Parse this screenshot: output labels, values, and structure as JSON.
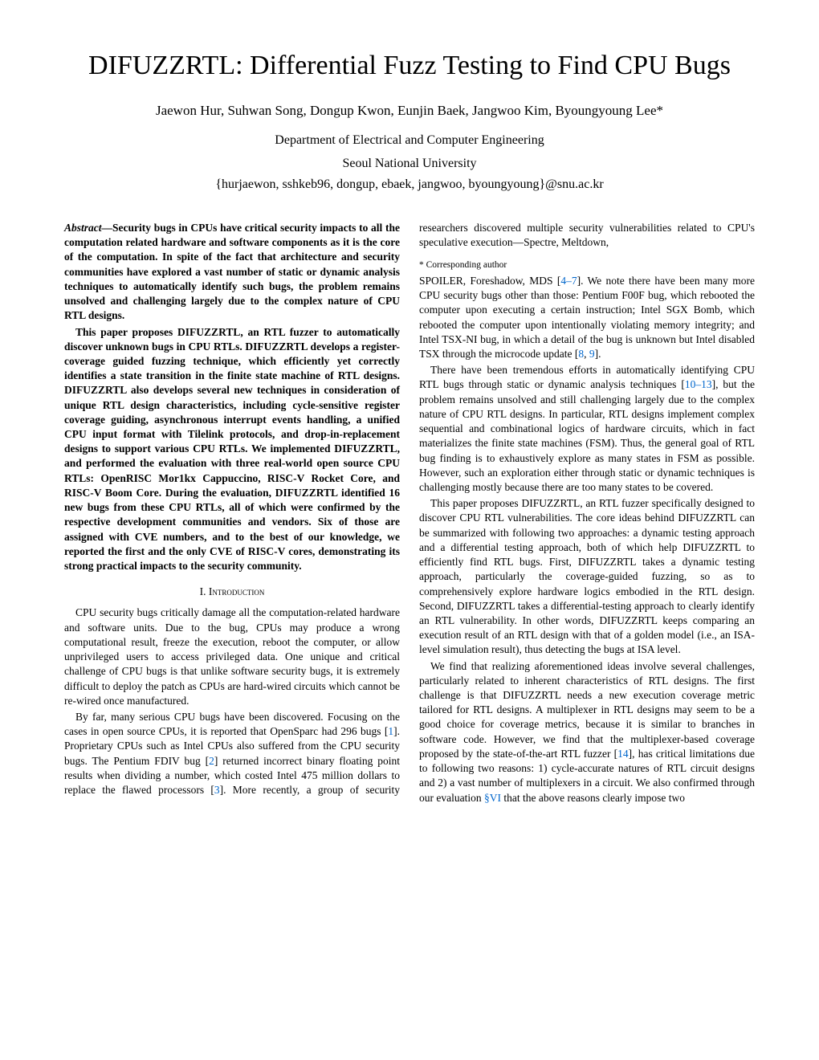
{
  "title_part1": "D",
  "title_part2": "IFUZZ",
  "title_part3": "RTL: Differential Fuzz Testing to Find CPU Bugs",
  "authors": "Jaewon Hur, Suhwan Song, Dongup Kwon, Eunjin Baek, Jangwoo Kim, Byoungyoung Lee*",
  "affiliation_dept": "Department of Electrical and Computer Engineering",
  "affiliation_univ": "Seoul National University",
  "emails": "{hurjaewon, sshkeb96, dongup, ebaek, jangwoo, byoungyoung}@snu.ac.kr",
  "abstract_label": "Abstract—",
  "abstract_p1": "Security bugs in CPUs have critical security impacts to all the computation related hardware and software components as it is the core of the computation. In spite of the fact that architecture and security communities have explored a vast number of static or dynamic analysis techniques to automatically identify such bugs, the problem remains unsolved and challenging largely due to the complex nature of CPU RTL designs.",
  "abstract_p2a": "This paper proposes D",
  "abstract_p2b": "RTL, an RTL fuzzer to automatically discover unknown bugs in CPU RTLs. D",
  "abstract_p2c": "RTL develops a register-coverage guided fuzzing technique, which efficiently yet correctly identifies a state transition in the finite state machine of RTL designs. D",
  "abstract_p2d": "RTL also develops several new techniques in consideration of unique RTL design characteristics, including cycle-sensitive register coverage guiding, asynchronous interrupt events handling, a unified CPU input format with Tilelink protocols, and drop-in-replacement designs to support various CPU RTLs. We implemented D",
  "abstract_p2e": "RTL, and performed the evaluation with three real-world open source CPU RTLs: OpenRISC Mor1kx Cappuccino, RISC-V Rocket Core, and RISC-V Boom Core. During the evaluation, D",
  "abstract_p2f": "RTL identified 16 new bugs from these CPU RTLs, all of which were confirmed by the respective development communities and vendors. Six of those are assigned with CVE numbers, and to the best of our knowledge, we reported the first and the only CVE of RISC-V cores, demonstrating its strong practical impacts to the security community.",
  "section1_heading": "I. Introduction",
  "intro_p1": "CPU security bugs critically damage all the computation-related hardware and software units. Due to the bug, CPUs may produce a wrong computational result, freeze the execution, reboot the computer, or allow unprivileged users to access privileged data. One unique and critical challenge of CPU bugs is that unlike software security bugs, it is extremely difficult to deploy the patch as CPUs are hard-wired circuits which cannot be re-wired once manufactured.",
  "intro_p2a": "By far, many serious CPU bugs have been discovered. Focusing on the cases in open source CPUs, it is reported that OpenSparc had 296 bugs [",
  "intro_p2b": "]. Proprietary CPUs such as Intel CPUs also suffered from the CPU security bugs. The Pentium FDIV bug [",
  "intro_p2c": "] returned incorrect binary floating point results when dividing a number, which costed Intel 475 million dollars to replace the flawed processors [",
  "intro_p2d": "]. More recently, a group of security researchers discovered multiple security vulnerabilities related to CPU's speculative execution—Spectre, Meltdown, ",
  "ref1": "1",
  "ref2": "2",
  "ref3": "3",
  "footnote": "* Corresponding author",
  "col2_p1a": "SPOILER, Foreshadow, MDS [",
  "col2_p1b": "]. We note there have been many more CPU security bugs other than those: Pentium F00F bug, which rebooted the computer upon executing a certain instruction; Intel SGX Bomb, which rebooted the computer upon intentionally violating memory integrity; and Intel TSX-NI bug, in which a detail of the bug is unknown but Intel disabled TSX through the microcode update [",
  "col2_p1c": "].",
  "ref4_7": "4–7",
  "ref8": "8",
  "ref9": "9",
  "col2_p2a": "There have been tremendous efforts in automatically identifying CPU RTL bugs through static or dynamic analysis techniques [",
  "col2_p2b": "], but the problem remains unsolved and still challenging largely due to the complex nature of CPU RTL designs. In particular, RTL designs implement complex sequential and combinational logics of hardware circuits, which in fact materializes the finite state machines (FSM). Thus, the general goal of RTL bug finding is to exhaustively explore as many states in FSM as possible. However, such an exploration either through static or dynamic techniques is challenging mostly because there are too many states to be covered.",
  "ref10_13": "10–13",
  "col2_p3a": "This paper proposes D",
  "col2_p3b": "RTL, an RTL fuzzer specifically designed to discover CPU RTL vulnerabilities. The core ideas behind D",
  "col2_p3c": "RTL can be summarized with following two approaches: a dynamic testing approach and a differential testing approach, both of which help D",
  "col2_p3d": "RTL to efficiently find RTL bugs. First, D",
  "col2_p3e": "RTL takes a dynamic testing approach, particularly the coverage-guided fuzzing, so as to comprehensively explore hardware logics embodied in the RTL design. Second, D",
  "col2_p3f": "RTL takes a differential-testing approach to clearly identify an RTL vulnerability. In other words, D",
  "col2_p3g": "RTL keeps comparing an execution result of an RTL design with that of a golden model (i.e., an ISA-level simulation result), thus detecting the bugs at ISA level.",
  "col2_p4a": "We find that realizing aforementioned ideas involve several challenges, particularly related to inherent characteristics of RTL designs. The first challenge is that D",
  "col2_p4b": "RTL needs a new execution coverage metric tailored for RTL designs. A multiplexer in RTL designs may seem to be a good choice for coverage metrics, because it is similar to branches in software code. However, we find that the multiplexer-based coverage proposed by the state-of-the-art RTL fuzzer [",
  "col2_p4c": "], has critical limitations due to following two reasons: 1) cycle-accurate natures of RTL circuit designs and 2) a vast number of multiplexers in a circuit. We also confirmed through our evaluation ",
  "col2_p4d": " that the above reasons clearly impose two",
  "ref14": "14",
  "refvi": "§VI",
  "difuzz": "IFUZZ"
}
